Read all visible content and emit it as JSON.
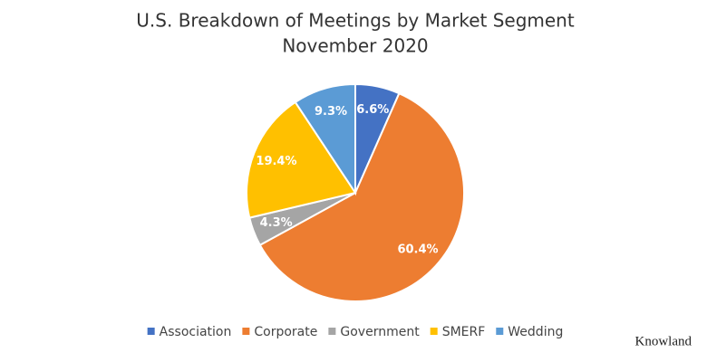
{
  "chart_data": {
    "type": "pie",
    "title": "U.S. Breakdown of Meetings by Market Segment",
    "subtitle": "November 2020",
    "categories": [
      "Association",
      "Corporate",
      "Government",
      "SMERF",
      "Wedding"
    ],
    "values": [
      6.6,
      60.4,
      4.3,
      19.4,
      9.3
    ],
    "value_labels": [
      "6.6%",
      "60.4%",
      "4.3%",
      "19.4%",
      "9.3%"
    ],
    "colors": [
      "#4472c4",
      "#ed7d31",
      "#a5a5a5",
      "#ffc000",
      "#5b9bd5"
    ],
    "legend": "bottom"
  },
  "watermark": "Knowland"
}
